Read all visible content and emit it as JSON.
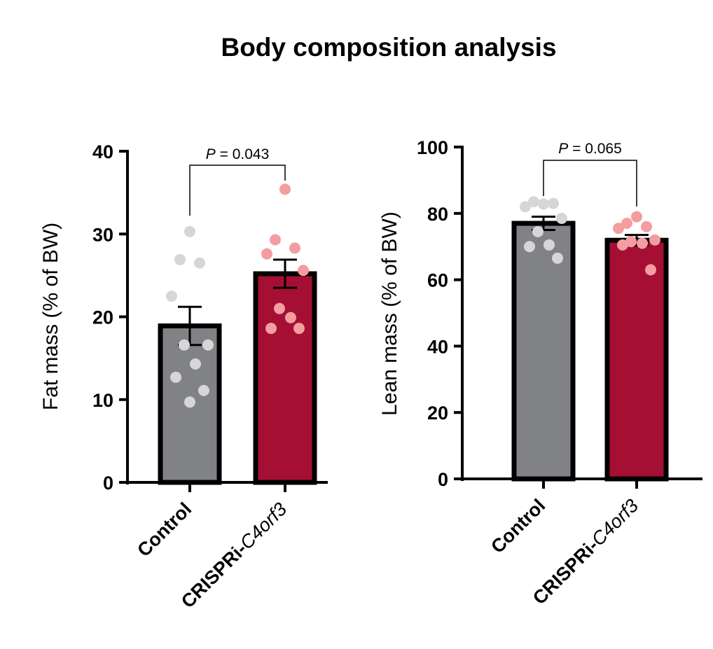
{
  "title": "Body composition analysis",
  "colors": {
    "control_bar": "#808285",
    "crispri_bar": "#a50f34",
    "control_dot": "#d6d6d6",
    "crispri_dot": "#f39da0"
  },
  "chart_data": [
    {
      "type": "bar",
      "ylabel": "Fat mass  (% of BW)",
      "ylim": [
        0,
        40
      ],
      "yticks": [
        "0",
        "10",
        "20",
        "30",
        "40"
      ],
      "categories": [
        {
          "bold": "Control",
          "italic": ""
        },
        {
          "bold": "CRISPRi-",
          "italic": "C4orf3"
        }
      ],
      "values": [
        18.9,
        25.2
      ],
      "sem": [
        2.3,
        1.7
      ],
      "points": [
        [
          30.3,
          26.9,
          26.5,
          22.5,
          16.6,
          16.6,
          14.3,
          12.7,
          11.1,
          9.7
        ],
        [
          35.4,
          29.3,
          28.3,
          27.6,
          25.6,
          21.0,
          19.9,
          18.6,
          18.6
        ]
      ],
      "annotation": {
        "prefix": "P",
        "text": " = 0.043"
      }
    },
    {
      "type": "bar",
      "ylabel": "Lean mass  (% of BW)",
      "ylim": [
        0,
        100
      ],
      "yticks": [
        "0",
        "20",
        "40",
        "60",
        "80",
        "100"
      ],
      "categories": [
        {
          "bold": "Control",
          "italic": ""
        },
        {
          "bold": "CRISPRi-",
          "italic": "C4orf3"
        }
      ],
      "values": [
        77.0,
        71.9
      ],
      "sem": [
        2.0,
        1.6
      ],
      "points": [
        [
          82.8,
          83.5,
          83.0,
          82.0,
          78.5,
          74.5,
          70.5,
          70.0,
          66.5
        ],
        [
          79.0,
          77.0,
          76.0,
          75.5,
          72.0,
          71.5,
          71.0,
          70.5,
          63.0
        ]
      ],
      "annotation": {
        "prefix": "P",
        "text": " = 0.065"
      }
    }
  ]
}
